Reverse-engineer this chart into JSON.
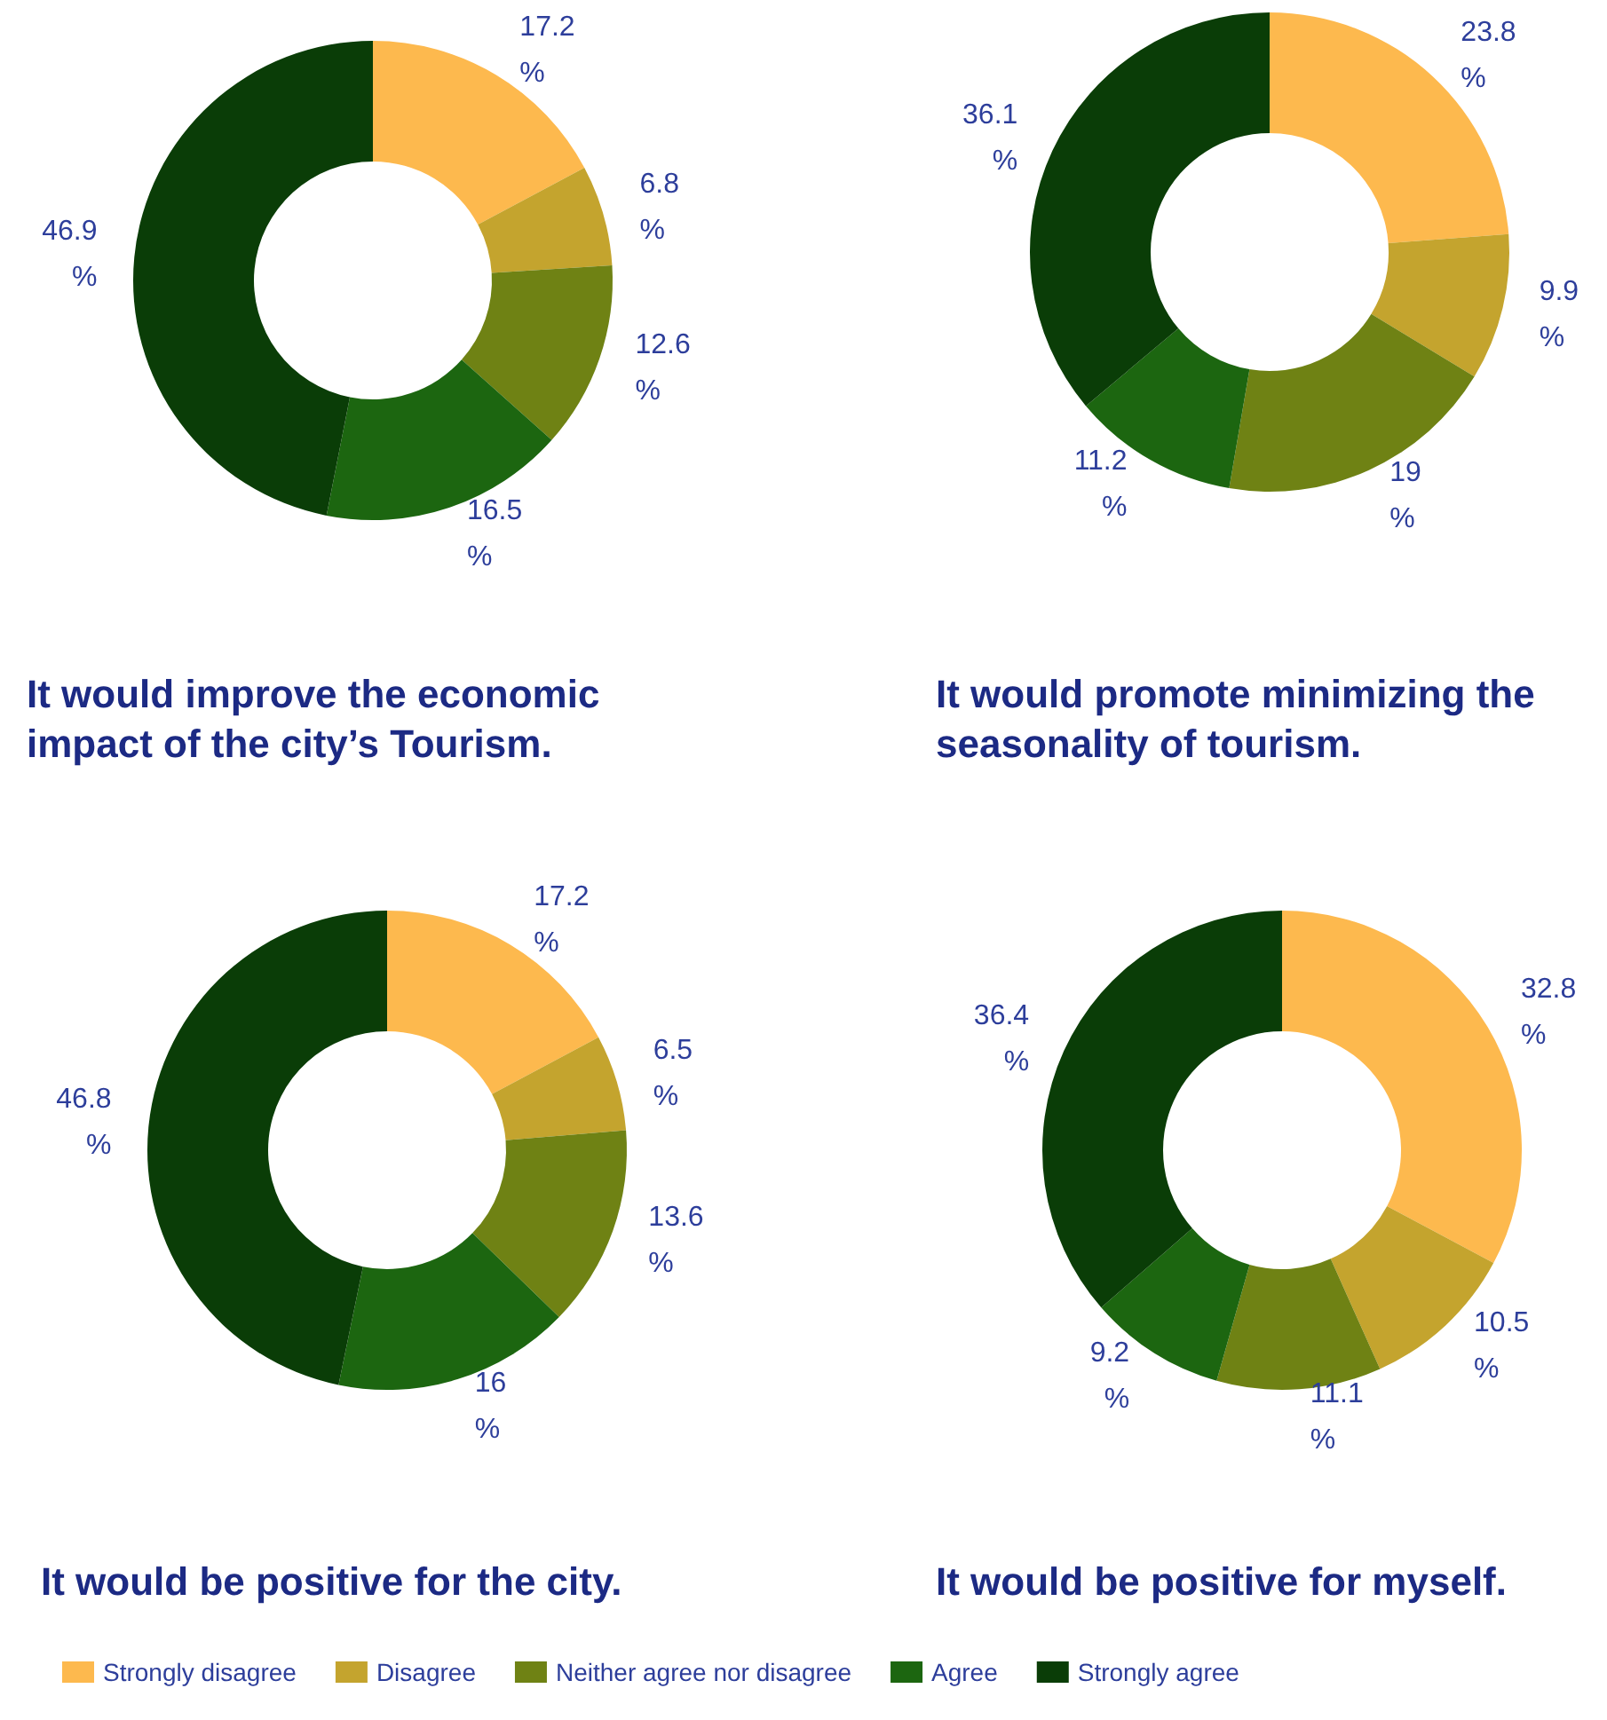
{
  "chart_data": [
    {
      "type": "donut",
      "title": "It would improve the economic impact of the city’s Tourism.",
      "categories": [
        null,
        null,
        null,
        null,
        null
      ],
      "values": [
        17.2,
        6.8,
        12.6,
        16.5,
        46.9
      ],
      "value_labels": [
        "17.2 %",
        "6.8 %",
        "12.6 %",
        "16.5 %",
        "46.9 %"
      ],
      "colors": [
        "#fdb94e",
        "#c4a42e",
        "#6f8214",
        "#1c6610",
        "#0a3d07"
      ]
    },
    {
      "type": "donut",
      "title": "It would promote minimizing the seasonality of tourism.",
      "categories": [
        null,
        null,
        null,
        null,
        null
      ],
      "values": [
        23.8,
        9.9,
        19,
        11.2,
        36.1
      ],
      "value_labels": [
        "23.8 %",
        "9.9 %",
        "19 %",
        "11.2 %",
        "36.1 %"
      ],
      "colors": [
        "#fdb94e",
        "#c4a42e",
        "#6f8214",
        "#1c6610",
        "#0a3d07"
      ]
    },
    {
      "type": "donut",
      "title": "It would be positive for the city.",
      "categories": [
        null,
        null,
        null,
        null,
        null
      ],
      "values": [
        17.2,
        6.5,
        13.6,
        16,
        46.8
      ],
      "value_labels": [
        "17.2 %",
        "6.5 %",
        "13.6 %",
        "16 %",
        "46.8 %"
      ],
      "colors": [
        "#fdb94e",
        "#c4a42e",
        "#6f8214",
        "#1c6610",
        "#0a3d07"
      ]
    },
    {
      "type": "donut",
      "title": "It would be positive for myself.",
      "categories": [
        "Strongly disagree",
        "Disagree",
        "Neither agree nor disagree",
        "Agree",
        "Strongly agree"
      ],
      "values": [
        32.8,
        10.5,
        11.1,
        9.2,
        36.4
      ],
      "value_labels": [
        "32.8 %",
        "10.5 %",
        "11.1 %",
        "9.2 %",
        "36.4 %"
      ],
      "colors": [
        "#fdb94e",
        "#c4a42e",
        "#6f8214",
        "#1c6610",
        "#0a3d07"
      ],
      "legend": "bottom"
    }
  ]
}
